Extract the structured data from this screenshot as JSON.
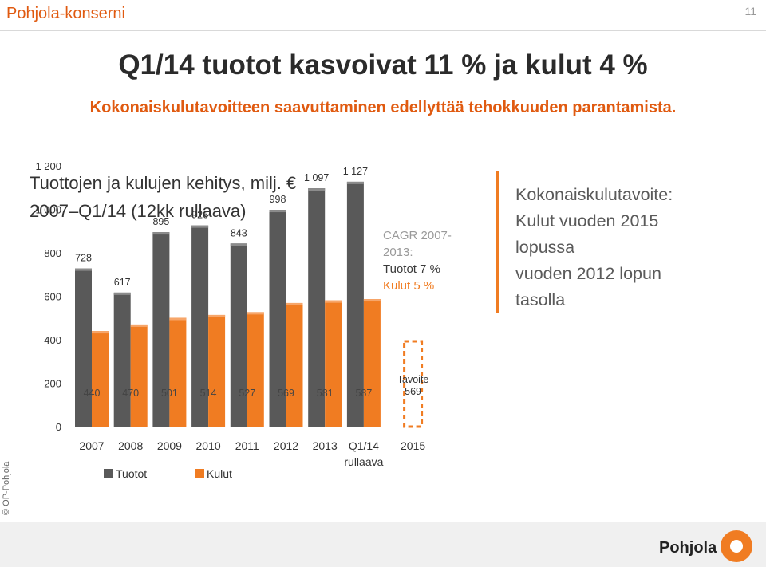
{
  "header": {
    "brand": "Pohjola-konserni",
    "page_number": "11"
  },
  "title": "Q1/14 tuotot kasvoivat 11 % ja kulut 4 %",
  "subtitle": "Kokonaiskulutavoitteen saavuttaminen edellyttää tehokkuuden parantamista.",
  "chart_title_line1": "Tuottojen ja kulujen kehitys, milj. €",
  "chart_title_line2": "2007–Q1/14 (12kk rullaava)",
  "cagr": {
    "line1": "CAGR 2007-",
    "line2": "2013:",
    "line3": "Tuotot 7 %",
    "line4": "Kulut 5 %"
  },
  "target_text": [
    "Kokonaiskulutavoite:",
    "Kulut vuoden 2015",
    "lopussa",
    "vuoden 2012 lopun",
    "tasolla"
  ],
  "copyright": "© OP-Pohjola",
  "footer_logo_text": "Pohjola",
  "colors": {
    "tuotot": "#595959",
    "kulut": "#f07c22",
    "accent": "#e05a10"
  },
  "chart_data": {
    "type": "bar",
    "categories": [
      "2007",
      "2008",
      "2009",
      "2010",
      "2011",
      "2012",
      "2013",
      "Q1/14 rullaava",
      "2015"
    ],
    "category_labels": [
      [
        "2007"
      ],
      [
        "2008"
      ],
      [
        "2009"
      ],
      [
        "2010"
      ],
      [
        "2011"
      ],
      [
        "2012"
      ],
      [
        "2013"
      ],
      [
        "Q1/14",
        "rullaava"
      ],
      [
        "2015"
      ]
    ],
    "series": [
      {
        "name": "Tuotot",
        "values": [
          728,
          617,
          895,
          926,
          843,
          998,
          1097,
          1127,
          null
        ]
      },
      {
        "name": "Kulut",
        "values": [
          440,
          470,
          501,
          514,
          527,
          569,
          581,
          587,
          null
        ]
      }
    ],
    "target": {
      "category": "2015",
      "value": 569,
      "label": "Tavoite"
    },
    "ylim": [
      0,
      1200
    ],
    "yticks": [
      "0",
      "200",
      "400",
      "600",
      "800",
      "1 000",
      "1 200"
    ],
    "grid": false,
    "legend": "bottom-left"
  }
}
